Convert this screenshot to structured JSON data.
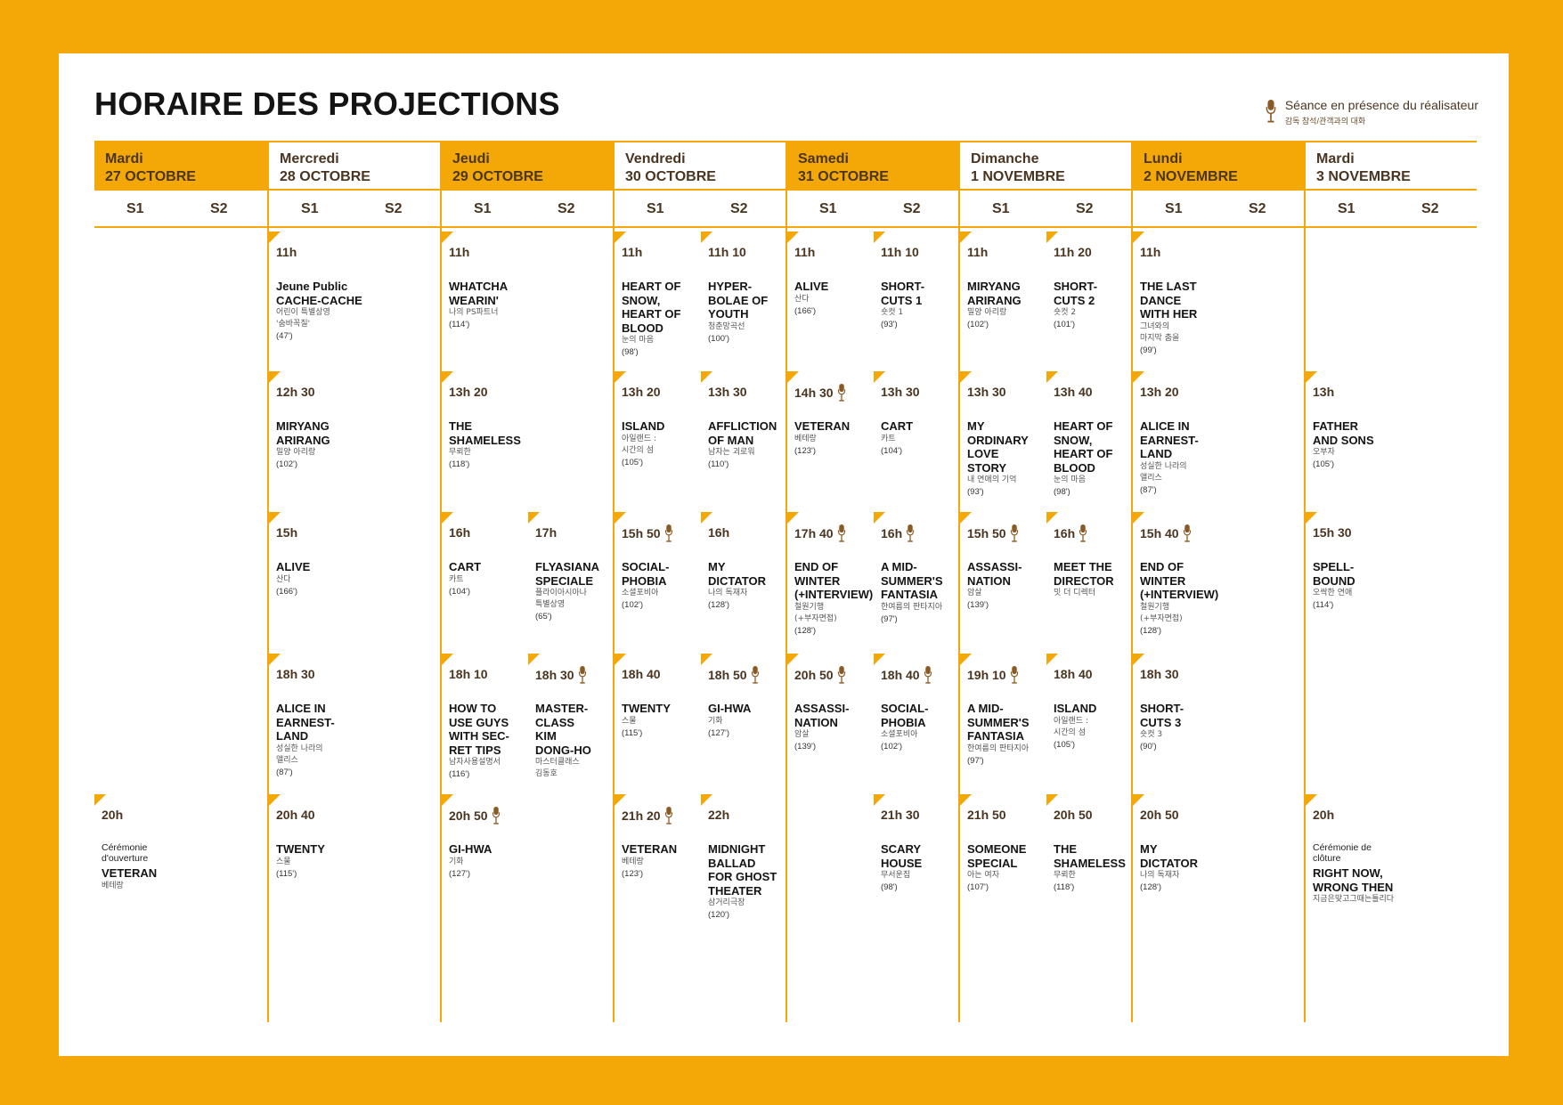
{
  "title": "HORAIRE DES PROJECTIONS",
  "legend": {
    "label_fr": "Séance en présence du réalisateur",
    "label_ko": "감독 참석/관객과의 대화",
    "icon": "microphone-icon"
  },
  "colors": {
    "accent": "#f3a807",
    "text_brown": "#4a3520",
    "icon_brown": "#8a5a24"
  },
  "days": [
    {
      "name": "Mardi",
      "date": "27 OCTOBRE",
      "filled": true,
      "s1": "S1",
      "s2": "S2",
      "entries": [
        {
          "slot": 4,
          "col": 0,
          "time": "20h",
          "mic": false,
          "note": "Cérémonie\nd'ouverture",
          "title": "VETERAN",
          "ko": "베테랑",
          "dur": ""
        }
      ]
    },
    {
      "name": "Mercredi",
      "date": "28 OCTOBRE",
      "filled": false,
      "s1": "S1",
      "s2": "S2",
      "entries": [
        {
          "slot": 0,
          "col": 0,
          "time": "11h",
          "mic": false,
          "note": "",
          "title": "Jeune Public\nCACHE-CACHE",
          "ko": "어린이 특별상영\n'숨바꼭질'",
          "dur": "(47')"
        },
        {
          "slot": 1,
          "col": 0,
          "time": "12h 30",
          "mic": false,
          "note": "",
          "title": "MIRYANG\nARIRANG",
          "ko": "밀양 아리랑",
          "dur": "(102')"
        },
        {
          "slot": 2,
          "col": 0,
          "time": "15h",
          "mic": false,
          "note": "",
          "title": "ALIVE",
          "ko": "산다",
          "dur": "(166')"
        },
        {
          "slot": 3,
          "col": 0,
          "time": "18h 30",
          "mic": false,
          "note": "",
          "title": "ALICE IN\nEARNEST-\nLAND",
          "ko": "성실한 나라의\n앨리스",
          "dur": "(87')"
        },
        {
          "slot": 4,
          "col": 0,
          "time": "20h 40",
          "mic": false,
          "note": "",
          "title": "TWENTY",
          "ko": "스물",
          "dur": "(115')"
        }
      ]
    },
    {
      "name": "Jeudi",
      "date": "29 OCTOBRE",
      "filled": true,
      "s1": "S1",
      "s2": "S2",
      "entries": [
        {
          "slot": 0,
          "col": 0,
          "time": "11h",
          "mic": false,
          "note": "",
          "title": "WHATCHA\nWEARIN'",
          "ko": "나의 PS파트너",
          "dur": "(114')"
        },
        {
          "slot": 1,
          "col": 0,
          "time": "13h 20",
          "mic": false,
          "note": "",
          "title": "THE\nSHAMELESS",
          "ko": "무뢰한",
          "dur": "(118')"
        },
        {
          "slot": 2,
          "col": 0,
          "time": "16h",
          "mic": false,
          "note": "",
          "title": "CART",
          "ko": "카트",
          "dur": "(104')"
        },
        {
          "slot": 2,
          "col": 1,
          "time": "17h",
          "mic": false,
          "note": "",
          "title": "FLYASIANA\nSPECIALE",
          "ko": "플라이아시아나\n특별상영",
          "dur": "(65')"
        },
        {
          "slot": 3,
          "col": 0,
          "time": "18h 10",
          "mic": false,
          "note": "",
          "title": "HOW TO\nUSE GUYS\nWITH SEC-\nRET TIPS",
          "ko": "남자사용설명서",
          "dur": "(116')"
        },
        {
          "slot": 3,
          "col": 1,
          "time": "18h 30",
          "mic": true,
          "note": "",
          "title": "MASTER-\nCLASS\nKIM\nDONG-HO",
          "ko": "마스터클래스\n김동호",
          "dur": ""
        },
        {
          "slot": 4,
          "col": 0,
          "time": "20h 50",
          "mic": true,
          "note": "",
          "title": "GI-HWA",
          "ko": "기화",
          "dur": "(127')"
        }
      ]
    },
    {
      "name": "Vendredi",
      "date": "30 OCTOBRE",
      "filled": false,
      "s1": "S1",
      "s2": "S2",
      "entries": [
        {
          "slot": 0,
          "col": 0,
          "time": "11h",
          "mic": false,
          "note": "",
          "title": "HEART OF\nSNOW,\nHEART OF\nBLOOD",
          "ko": "눈의 마음",
          "dur": "(98')"
        },
        {
          "slot": 0,
          "col": 1,
          "time": "11h 10",
          "mic": false,
          "note": "",
          "title": "HYPER-\nBOLAE OF\nYOUTH",
          "ko": "청춘망곡선",
          "dur": "(100')"
        },
        {
          "slot": 1,
          "col": 0,
          "time": "13h 20",
          "mic": false,
          "note": "",
          "title": "ISLAND",
          "ko": "아일랜드 :\n시간의 섬",
          "dur": "(105')"
        },
        {
          "slot": 1,
          "col": 1,
          "time": "13h 30",
          "mic": false,
          "note": "",
          "title": "AFFLICTION\nOF MAN",
          "ko": "남자는 괴로워",
          "dur": "(110')"
        },
        {
          "slot": 2,
          "col": 0,
          "time": "15h 50",
          "mic": true,
          "note": "",
          "title": "SOCIAL-\nPHOBIA",
          "ko": "소셜포비아",
          "dur": "(102')"
        },
        {
          "slot": 2,
          "col": 1,
          "time": "16h",
          "mic": false,
          "note": "",
          "title": "MY\nDICTATOR",
          "ko": "나의 독재자",
          "dur": "(128')"
        },
        {
          "slot": 3,
          "col": 0,
          "time": "18h 40",
          "mic": false,
          "note": "",
          "title": "TWENTY",
          "ko": "스물",
          "dur": "(115')"
        },
        {
          "slot": 3,
          "col": 1,
          "time": "18h 50",
          "mic": true,
          "note": "",
          "title": "GI-HWA",
          "ko": "기화",
          "dur": "(127')"
        },
        {
          "slot": 4,
          "col": 0,
          "time": "21h 20",
          "mic": true,
          "note": "",
          "title": "VETERAN",
          "ko": "베테랑",
          "dur": "(123')"
        },
        {
          "slot": 4,
          "col": 1,
          "time": "22h",
          "mic": false,
          "note": "",
          "title": "MIDNIGHT\nBALLAD\nFOR GHOST\nTHEATER",
          "ko": "삼거리극장",
          "dur": "(120')"
        }
      ]
    },
    {
      "name": "Samedi",
      "date": "31 OCTOBRE",
      "filled": true,
      "s1": "S1",
      "s2": "S2",
      "entries": [
        {
          "slot": 0,
          "col": 0,
          "time": "11h",
          "mic": false,
          "note": "",
          "title": "ALIVE",
          "ko": "산다",
          "dur": "(166')"
        },
        {
          "slot": 0,
          "col": 1,
          "time": "11h 10",
          "mic": false,
          "note": "",
          "title": "SHORT-\nCUTS 1",
          "ko": "숏컷 1",
          "dur": "(93')"
        },
        {
          "slot": 1,
          "col": 0,
          "time": "14h 30",
          "mic": true,
          "note": "",
          "title": "VETERAN",
          "ko": "베테랑",
          "dur": "(123')"
        },
        {
          "slot": 1,
          "col": 1,
          "time": "13h 30",
          "mic": false,
          "note": "",
          "title": "CART",
          "ko": "카트",
          "dur": "(104')"
        },
        {
          "slot": 2,
          "col": 0,
          "time": "17h 40",
          "mic": true,
          "note": "",
          "title": "END OF\nWINTER\n(+INTERVIEW)",
          "ko": "철원기행\n(+부자면접)",
          "dur": "(128')"
        },
        {
          "slot": 2,
          "col": 1,
          "time": "16h",
          "mic": true,
          "note": "",
          "title": "A MID-\nSUMMER'S\nFANTASIA",
          "ko": "한여름의 판타지아",
          "dur": "(97')"
        },
        {
          "slot": 3,
          "col": 0,
          "time": "20h 50",
          "mic": true,
          "note": "",
          "title": "ASSASSI-\nNATION",
          "ko": "암살",
          "dur": "(139')"
        },
        {
          "slot": 3,
          "col": 1,
          "time": "18h 40",
          "mic": true,
          "note": "",
          "title": "SOCIAL-\nPHOBIA",
          "ko": "소셜포비아",
          "dur": "(102')"
        },
        {
          "slot": 4,
          "col": 1,
          "time": "21h 30",
          "mic": false,
          "note": "",
          "title": "SCARY\nHOUSE",
          "ko": "무서운집",
          "dur": "(98')"
        }
      ]
    },
    {
      "name": "Dimanche",
      "date": "1 NOVEMBRE",
      "filled": false,
      "s1": "S1",
      "s2": "S2",
      "entries": [
        {
          "slot": 0,
          "col": 0,
          "time": "11h",
          "mic": false,
          "note": "",
          "title": "MIRYANG\nARIRANG",
          "ko": "밀양 아리랑",
          "dur": "(102')"
        },
        {
          "slot": 0,
          "col": 1,
          "time": "11h 20",
          "mic": false,
          "note": "",
          "title": "SHORT-\nCUTS 2",
          "ko": "숏컷 2",
          "dur": "(101')"
        },
        {
          "slot": 1,
          "col": 0,
          "time": "13h 30",
          "mic": false,
          "note": "",
          "title": "MY\nORDINARY\nLOVE\nSTORY",
          "ko": "내 연애의 기억",
          "dur": "(93')"
        },
        {
          "slot": 1,
          "col": 1,
          "time": "13h 40",
          "mic": false,
          "note": "",
          "title": "HEART OF\nSNOW,\nHEART OF\nBLOOD",
          "ko": "눈의 마음",
          "dur": "(98')"
        },
        {
          "slot": 2,
          "col": 0,
          "time": "15h 50",
          "mic": true,
          "note": "",
          "title": "ASSASSI-\nNATION",
          "ko": "암살",
          "dur": "(139')"
        },
        {
          "slot": 2,
          "col": 1,
          "time": "16h",
          "mic": true,
          "note": "",
          "title": "MEET THE\nDIRECTOR",
          "ko": "밋 더 디렉터",
          "dur": ""
        },
        {
          "slot": 3,
          "col": 0,
          "time": "19h 10",
          "mic": true,
          "note": "",
          "title": "A MID-\nSUMMER'S\nFANTASIA",
          "ko": "한여름의 판타지아",
          "dur": "(97')"
        },
        {
          "slot": 3,
          "col": 1,
          "time": "18h 40",
          "mic": false,
          "note": "",
          "title": "ISLAND",
          "ko": "아일랜드 :\n시간의 섬",
          "dur": "(105')"
        },
        {
          "slot": 4,
          "col": 0,
          "time": "21h 50",
          "mic": false,
          "note": "",
          "title": "SOMEONE\nSPECIAL",
          "ko": "아는 여자",
          "dur": "(107')"
        },
        {
          "slot": 4,
          "col": 1,
          "time": "20h 50",
          "mic": false,
          "note": "",
          "title": "THE\nSHAMELESS",
          "ko": "무뢰한",
          "dur": "(118')"
        }
      ]
    },
    {
      "name": "Lundi",
      "date": "2 NOVEMBRE",
      "filled": true,
      "s1": "S1",
      "s2": "S2",
      "entries": [
        {
          "slot": 0,
          "col": 0,
          "time": "11h",
          "mic": false,
          "note": "",
          "title": "THE LAST\nDANCE\nWITH HER",
          "ko": "그녀와의\n마지막 춤을",
          "dur": "(99')"
        },
        {
          "slot": 1,
          "col": 0,
          "time": "13h 20",
          "mic": false,
          "note": "",
          "title": "ALICE IN\nEARNEST-\nLAND",
          "ko": "성실한 나라의\n앨리스",
          "dur": "(87')"
        },
        {
          "slot": 2,
          "col": 0,
          "time": "15h 40",
          "mic": true,
          "note": "",
          "title": "END OF\nWINTER\n(+INTERVIEW)",
          "ko": "철원기행\n(+부자면접)",
          "dur": "(128')"
        },
        {
          "slot": 3,
          "col": 0,
          "time": "18h 30",
          "mic": false,
          "note": "",
          "title": "SHORT-\nCUTS 3",
          "ko": "숏컷 3",
          "dur": "(90')"
        },
        {
          "slot": 4,
          "col": 0,
          "time": "20h 50",
          "mic": false,
          "note": "",
          "title": "MY\nDICTATOR",
          "ko": "나의 독재자",
          "dur": "(128')"
        }
      ]
    },
    {
      "name": "Mardi",
      "date": "3 NOVEMBRE",
      "filled": false,
      "s1": "S1",
      "s2": "S2",
      "entries": [
        {
          "slot": 1,
          "col": 0,
          "time": "13h",
          "mic": false,
          "note": "",
          "title": "FATHER\nAND SONS",
          "ko": "오부자",
          "dur": "(105')"
        },
        {
          "slot": 2,
          "col": 0,
          "time": "15h 30",
          "mic": false,
          "note": "",
          "title": "SPELL-\nBOUND",
          "ko": "오싹한 연애",
          "dur": "(114')"
        },
        {
          "slot": 4,
          "col": 0,
          "time": "20h",
          "mic": false,
          "note": "Cérémonie de\nclôture",
          "title": "RIGHT NOW,\nWRONG THEN",
          "ko": "지금은맞고그때는틀리다",
          "dur": ""
        }
      ]
    }
  ]
}
